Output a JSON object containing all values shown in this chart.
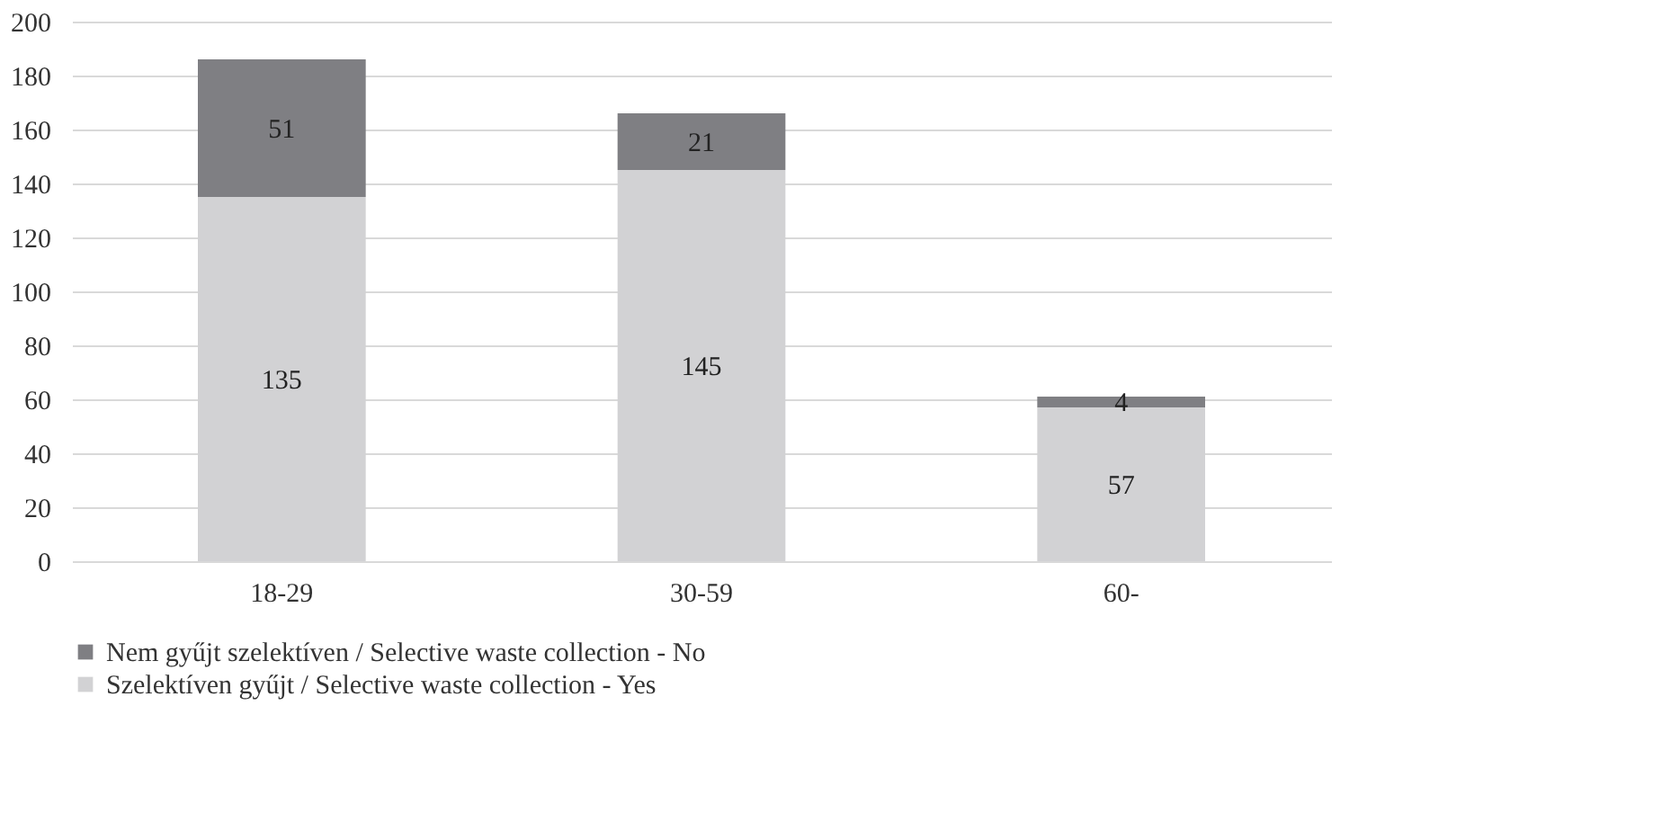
{
  "chart_data": {
    "type": "bar",
    "stacked": true,
    "categories": [
      "18-29",
      "30-59",
      "60-"
    ],
    "series": [
      {
        "name": "Szelektíven gyűjt / Selective waste collection - Yes",
        "color": "#d2d2d4",
        "values": [
          135,
          145,
          57
        ]
      },
      {
        "name": "Nem gyűjt szelektíven / Selective waste collection - No",
        "color": "#7f7f83",
        "values": [
          51,
          21,
          4
        ]
      }
    ],
    "ylim": [
      0,
      200
    ],
    "yticks": [
      0,
      20,
      40,
      60,
      80,
      100,
      120,
      140,
      160,
      180,
      200
    ],
    "grid": "y",
    "legend": "bottom",
    "data_labels": true
  }
}
